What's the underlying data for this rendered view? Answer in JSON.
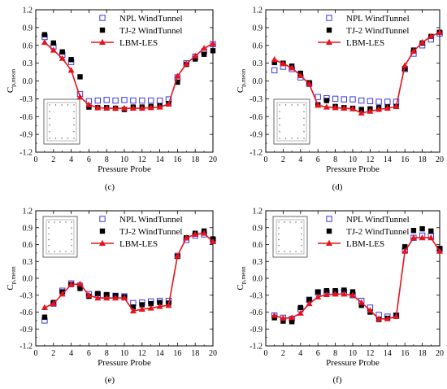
{
  "colors": {
    "npl": "#3a3adf",
    "tj2": "#000000",
    "lbm": "#e8121b",
    "axis": "#000000"
  },
  "chart_data": [
    {
      "type": "line",
      "panel_label": "(c)",
      "xlabel": "Pressure Probe",
      "ylabel": "C",
      "ylabel_sub": "p,mean",
      "xlim": [
        0,
        20
      ],
      "ylim": [
        -1.2,
        1.2
      ],
      "xticks": [
        "0",
        "2",
        "4",
        "6",
        "8",
        "10",
        "12",
        "14",
        "16",
        "18",
        "20"
      ],
      "yticks": [
        "-1.2",
        "-0.9",
        "-0.6",
        "-0.3",
        "0.0",
        "0.3",
        "0.6",
        "0.9",
        "1.2"
      ],
      "legend": "top-right",
      "inset": "bottom-left",
      "x": [
        1,
        2,
        3,
        4,
        5,
        6,
        7,
        8,
        9,
        10,
        11,
        12,
        13,
        14,
        15,
        16,
        17,
        18,
        19,
        20
      ],
      "series": [
        {
          "name": "NPL WindTunnel",
          "marker": "open-square",
          "values": [
            0.74,
            0.58,
            0.44,
            0.32,
            -0.22,
            -0.34,
            -0.33,
            -0.32,
            -0.33,
            -0.32,
            -0.33,
            -0.33,
            -0.33,
            -0.33,
            -0.31,
            0.06,
            0.3,
            0.41,
            0.5,
            0.62
          ]
        },
        {
          "name": "TJ-2 WindTunnel",
          "marker": "filled-square",
          "values": [
            0.78,
            0.64,
            0.49,
            0.36,
            0.07,
            -0.44,
            -0.45,
            -0.45,
            -0.46,
            -0.48,
            -0.44,
            -0.44,
            -0.43,
            -0.42,
            -0.38,
            -0.02,
            0.28,
            0.37,
            0.45,
            0.51
          ]
        },
        {
          "name": "LBM-LES",
          "marker": "filled-triangle",
          "values": [
            0.65,
            0.52,
            0.38,
            0.18,
            -0.27,
            -0.4,
            -0.45,
            -0.46,
            -0.46,
            -0.46,
            -0.46,
            -0.46,
            -0.45,
            -0.44,
            -0.39,
            0.08,
            0.29,
            0.42,
            0.55,
            0.63
          ]
        }
      ]
    },
    {
      "type": "line",
      "panel_label": "(d)",
      "xlabel": "Pressure Probe",
      "ylabel": "C",
      "ylabel_sub": "p,mean",
      "xlim": [
        0,
        20
      ],
      "ylim": [
        -1.2,
        1.2
      ],
      "xticks": [
        "0",
        "2",
        "4",
        "6",
        "8",
        "10",
        "12",
        "14",
        "16",
        "18",
        "20"
      ],
      "yticks": [
        "-1.2",
        "-0.9",
        "-0.6",
        "-0.3",
        "0.0",
        "0.3",
        "0.6",
        "0.9",
        "1.2"
      ],
      "legend": "top-right",
      "inset": "bottom-left",
      "x": [
        1,
        2,
        3,
        4,
        5,
        6,
        7,
        8,
        9,
        10,
        11,
        12,
        13,
        14,
        15,
        16,
        17,
        18,
        19,
        20
      ],
      "series": [
        {
          "name": "NPL WindTunnel",
          "marker": "open-square",
          "values": [
            0.18,
            0.24,
            0.2,
            0.06,
            -0.05,
            -0.27,
            -0.29,
            -0.3,
            -0.31,
            -0.31,
            -0.33,
            -0.34,
            -0.35,
            -0.35,
            -0.35,
            0.2,
            0.46,
            0.6,
            0.7,
            0.8
          ]
        },
        {
          "name": "TJ-2 WindTunnel",
          "marker": "filled-square",
          "values": [
            0.31,
            0.3,
            0.25,
            0.13,
            -0.03,
            -0.4,
            -0.33,
            -0.43,
            -0.45,
            -0.46,
            -0.48,
            -0.47,
            -0.45,
            -0.44,
            -0.43,
            0.21,
            0.52,
            0.64,
            0.75,
            0.82
          ]
        },
        {
          "name": "LBM-LES",
          "marker": "filled-triangle",
          "values": [
            0.36,
            0.29,
            0.22,
            0.09,
            -0.05,
            -0.41,
            -0.44,
            -0.45,
            -0.46,
            -0.47,
            -0.54,
            -0.51,
            -0.48,
            -0.46,
            -0.43,
            0.26,
            0.5,
            0.65,
            0.75,
            0.82
          ]
        }
      ]
    },
    {
      "type": "line",
      "panel_label": "(e)",
      "xlabel": "Pressure Probe",
      "ylabel": "C",
      "ylabel_sub": "p,mean",
      "xlim": [
        0,
        20
      ],
      "ylim": [
        -1.2,
        1.2
      ],
      "xticks": [
        "0",
        "2",
        "4",
        "6",
        "8",
        "10",
        "12",
        "14",
        "16",
        "18",
        "20"
      ],
      "yticks": [
        "-1.2",
        "-0.9",
        "-0.6",
        "-0.3",
        "0.0",
        "0.3",
        "0.6",
        "0.9",
        "1.2"
      ],
      "legend": "top-right",
      "inset": "top-left",
      "x": [
        1,
        2,
        3,
        4,
        5,
        6,
        7,
        8,
        9,
        10,
        11,
        12,
        13,
        14,
        15,
        16,
        17,
        18,
        19,
        20
      ],
      "series": [
        {
          "name": "NPL WindTunnel",
          "marker": "open-square",
          "values": [
            -0.75,
            -0.45,
            -0.22,
            -0.09,
            -0.13,
            -0.28,
            -0.29,
            -0.3,
            -0.31,
            -0.32,
            -0.44,
            -0.43,
            -0.41,
            -0.4,
            -0.4,
            0.4,
            0.68,
            0.76,
            0.78,
            0.68
          ]
        },
        {
          "name": "TJ-2 WindTunnel",
          "marker": "filled-square",
          "values": [
            -0.69,
            -0.43,
            -0.24,
            -0.11,
            -0.18,
            -0.32,
            -0.27,
            -0.29,
            -0.31,
            -0.33,
            -0.51,
            -0.47,
            -0.45,
            -0.43,
            -0.44,
            0.39,
            0.72,
            0.8,
            0.84,
            0.7
          ]
        },
        {
          "name": "LBM-LES",
          "marker": "filled-triangle",
          "values": [
            -0.52,
            -0.45,
            -0.28,
            -0.11,
            -0.1,
            -0.3,
            -0.35,
            -0.35,
            -0.35,
            -0.35,
            -0.58,
            -0.55,
            -0.53,
            -0.5,
            -0.48,
            0.4,
            0.72,
            0.78,
            0.8,
            0.65
          ]
        }
      ]
    },
    {
      "type": "line",
      "panel_label": "(f)",
      "xlabel": "Pressure Probe",
      "ylabel": "C",
      "ylabel_sub": "p,mean",
      "xlim": [
        0,
        20
      ],
      "ylim": [
        -1.2,
        1.2
      ],
      "xticks": [
        "0",
        "2",
        "4",
        "6",
        "8",
        "10",
        "12",
        "14",
        "16",
        "18",
        "20"
      ],
      "yticks": [
        "-1.2",
        "-0.9",
        "-0.6",
        "-0.3",
        "0.0",
        "0.3",
        "0.6",
        "0.9",
        "1.2"
      ],
      "legend": "top-right",
      "inset": "top-left",
      "x": [
        1,
        2,
        3,
        4,
        5,
        6,
        7,
        8,
        9,
        10,
        11,
        12,
        13,
        14,
        15,
        16,
        17,
        18,
        19,
        20
      ],
      "series": [
        {
          "name": "NPL WindTunnel",
          "marker": "open-square",
          "values": [
            -0.66,
            -0.7,
            -0.72,
            -0.55,
            -0.38,
            -0.25,
            -0.25,
            -0.25,
            -0.24,
            -0.3,
            -0.4,
            -0.52,
            -0.65,
            -0.68,
            -0.66,
            0.5,
            0.72,
            0.76,
            0.75,
            0.52
          ]
        },
        {
          "name": "TJ-2 WindTunnel",
          "marker": "filled-square",
          "values": [
            -0.7,
            -0.76,
            -0.77,
            -0.52,
            -0.38,
            -0.24,
            -0.22,
            -0.22,
            -0.21,
            -0.24,
            -0.48,
            -0.6,
            -0.73,
            -0.71,
            -0.66,
            0.56,
            0.85,
            0.88,
            0.84,
            0.53
          ]
        },
        {
          "name": "LBM-LES",
          "marker": "filled-triangle",
          "values": [
            -0.66,
            -0.71,
            -0.7,
            -0.62,
            -0.45,
            -0.33,
            -0.29,
            -0.28,
            -0.28,
            -0.3,
            -0.43,
            -0.57,
            -0.72,
            -0.72,
            -0.68,
            0.48,
            0.72,
            0.72,
            0.72,
            0.48
          ]
        }
      ]
    }
  ]
}
